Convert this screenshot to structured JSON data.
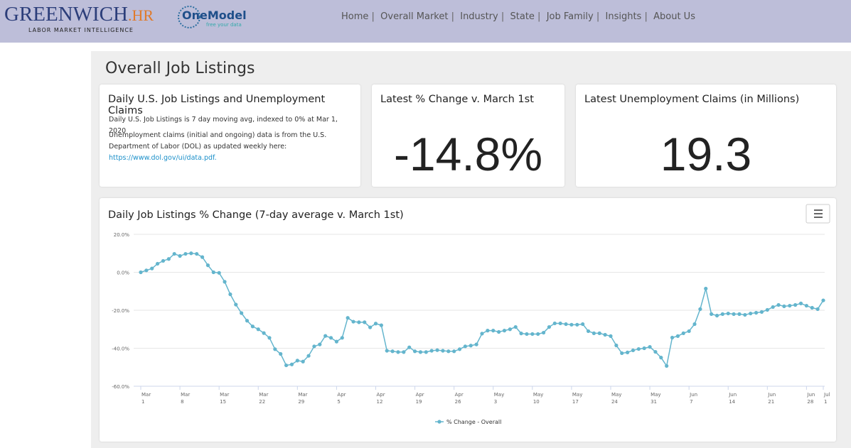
{
  "header": {
    "logo": "GREENWICH",
    "logo_suffix": ".HR",
    "tagline": "LABOR MARKET INTELLIGENCE",
    "partner": "OneModel",
    "partner_tagline": "free your data"
  },
  "nav": [
    "Home",
    "Overall Market",
    "Industry",
    "State",
    "Job Family",
    "Insights",
    "About Us"
  ],
  "page_title": "Overall Job Listings",
  "info_card": {
    "title": "Daily U.S. Job Listings and Unemployment Claims",
    "text1": "Daily U.S. Job Listings is 7 day moving avg, indexed to 0% at Mar 1, 2020",
    "text2": "Unemployment claims (initial and ongoing) data is from the U.S. Department of Labor (DOL) as updated weekly here:",
    "link": "https://www.dol.gov/ui/data.pdf."
  },
  "change_card": {
    "title": "Latest % Change v. March 1st",
    "value": "-14.8%"
  },
  "claims_card": {
    "title": "Latest Unemployment Claims (in Millions)",
    "value": "19.3"
  },
  "chart_data": {
    "type": "line",
    "title": "Daily Job Listings % Change (7-day average v. March 1st)",
    "x": [
      "Mar 1",
      "Mar 2",
      "Mar 3",
      "Mar 4",
      "Mar 5",
      "Mar 6",
      "Mar 7",
      "Mar 8",
      "Mar 9",
      "Mar 10",
      "Mar 11",
      "Mar 12",
      "Mar 13",
      "Mar 14",
      "Mar 15",
      "Mar 16",
      "Mar 17",
      "Mar 18",
      "Mar 19",
      "Mar 20",
      "Mar 21",
      "Mar 22",
      "Mar 23",
      "Mar 24",
      "Mar 25",
      "Mar 26",
      "Mar 27",
      "Mar 28",
      "Mar 29",
      "Mar 30",
      "Mar 31",
      "Apr 1",
      "Apr 2",
      "Apr 3",
      "Apr 4",
      "Apr 5",
      "Apr 6",
      "Apr 7",
      "Apr 8",
      "Apr 9",
      "Apr 10",
      "Apr 11",
      "Apr 12",
      "Apr 13",
      "Apr 14",
      "Apr 15",
      "Apr 16",
      "Apr 17",
      "Apr 18",
      "Apr 19",
      "Apr 20",
      "Apr 21",
      "Apr 22",
      "Apr 23",
      "Apr 24",
      "Apr 25",
      "Apr 26",
      "Apr 27",
      "Apr 28",
      "Apr 29",
      "Apr 30",
      "May 1",
      "May 2",
      "May 3",
      "May 4",
      "May 5",
      "May 6",
      "May 7",
      "May 8",
      "May 9",
      "May 10",
      "May 11",
      "May 12",
      "May 13",
      "May 14",
      "May 15",
      "May 16",
      "May 17",
      "May 18",
      "May 19",
      "May 20",
      "May 21",
      "May 22",
      "May 23",
      "May 24",
      "May 25",
      "May 26",
      "May 27",
      "May 28",
      "May 29",
      "May 30",
      "May 31",
      "Jun 1",
      "Jun 2",
      "Jun 3",
      "Jun 4",
      "Jun 5",
      "Jun 6",
      "Jun 7",
      "Jun 8",
      "Jun 9",
      "Jun 10",
      "Jun 11",
      "Jun 12",
      "Jun 13",
      "Jun 14",
      "Jun 15",
      "Jun 16",
      "Jun 17",
      "Jun 18",
      "Jun 19",
      "Jun 20",
      "Jun 21",
      "Jun 22",
      "Jun 23",
      "Jun 24",
      "Jun 25",
      "Jun 26",
      "Jun 27",
      "Jun 28",
      "Jun 29",
      "Jun 30",
      "Jul 1"
    ],
    "series": [
      {
        "name": "% Change - Overall",
        "color": "#64b5cd",
        "values": [
          0,
          1,
          2,
          4.5,
          6,
          7,
          9.7,
          8.6,
          9.7,
          10,
          9.7,
          8,
          3.7,
          0,
          -0.3,
          -5,
          -11.6,
          -17,
          -21.5,
          -25.5,
          -28.5,
          -30,
          -32,
          -34.5,
          -40.5,
          -43,
          -49,
          -48.5,
          -46.5,
          -47,
          -44,
          -39,
          -38,
          -33.5,
          -34.5,
          -36.5,
          -34.5,
          -24,
          -26,
          -26.3,
          -26.3,
          -29,
          -27,
          -27.9,
          -41.3,
          -41.6,
          -42,
          -42,
          -39.5,
          -41.6,
          -42,
          -42,
          -41.3,
          -41,
          -41.3,
          -41.6,
          -41.6,
          -40.5,
          -39,
          -38.6,
          -38,
          -32.3,
          -30.7,
          -30.7,
          -31.4,
          -30.7,
          -30,
          -28.8,
          -32.2,
          -32.5,
          -32.5,
          -32.5,
          -31.8,
          -28.8,
          -26.9,
          -26.9,
          -27.3,
          -27.6,
          -27.6,
          -27.3,
          -31,
          -32.1,
          -32.1,
          -32.9,
          -33.6,
          -38.5,
          -42.6,
          -42.2,
          -41.1,
          -40.4,
          -40,
          -39.3,
          -41.9,
          -44.9,
          -49.3,
          -34.4,
          -33.6,
          -32.1,
          -31,
          -27.3,
          -19.4,
          -8.6,
          -22,
          -22.8,
          -22,
          -21.7,
          -22,
          -22,
          -22.4,
          -21.7,
          -21.3,
          -20.9,
          -19.8,
          -18.3,
          -17.2,
          -17.9,
          -17.6,
          -17.2,
          -16.4,
          -17.6,
          -18.7,
          -19.4,
          -14.8
        ]
      }
    ],
    "xticks": [
      "Mar 1",
      "Mar 8",
      "Mar 15",
      "Mar 22",
      "Mar 29",
      "Apr 5",
      "Apr 12",
      "Apr 19",
      "Apr 26",
      "May 3",
      "May 10",
      "May 17",
      "May 24",
      "May 31",
      "Jun 7",
      "Jun 14",
      "Jun 21",
      "Jun 28",
      "Jul 1"
    ],
    "ylim": [
      -60,
      20
    ],
    "yticks": [
      {
        "value": -60,
        "label": "-60.0%"
      },
      {
        "value": -40,
        "label": "-40.0%"
      },
      {
        "value": -20,
        "label": "-20.0%"
      },
      {
        "value": 0,
        "label": "0.0%"
      },
      {
        "value": 20,
        "label": "20.0%"
      }
    ],
    "grid": true,
    "legend": "bottom"
  }
}
